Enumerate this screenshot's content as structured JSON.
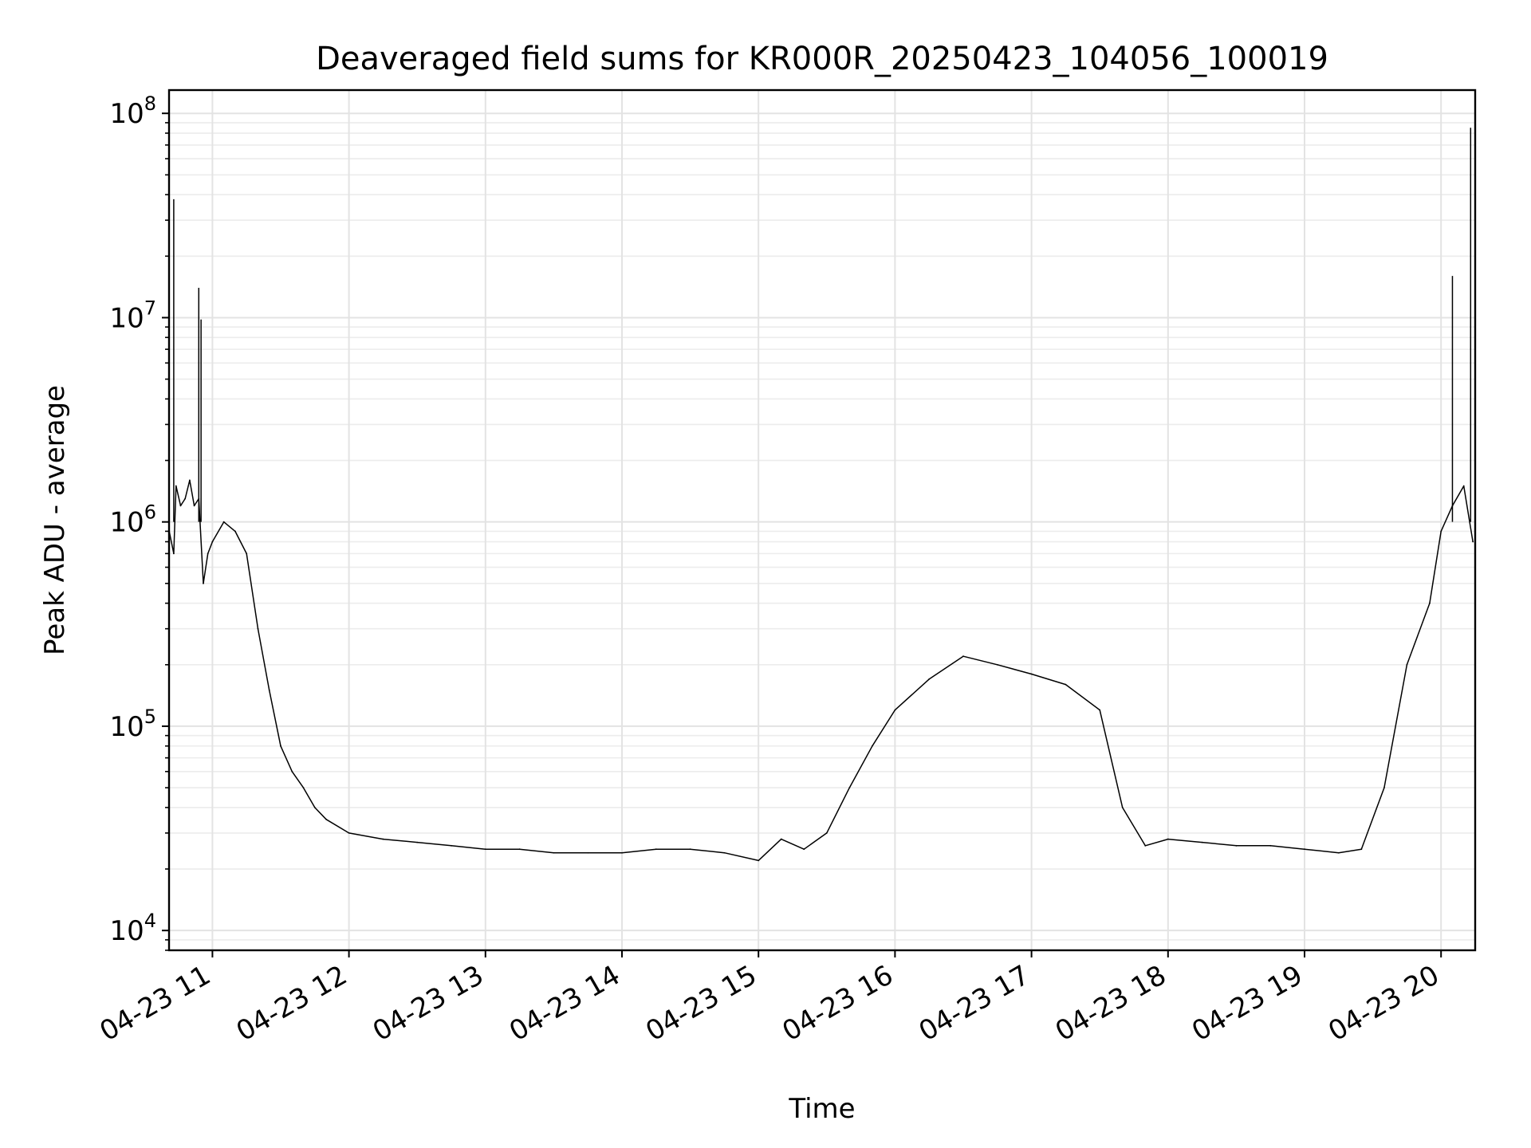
{
  "chart_data": {
    "type": "line",
    "title": "Deaveraged field sums for KR000R_20250423_104056_100019",
    "xlabel": "Time",
    "ylabel": "Peak ADU - average",
    "y_scale": "log",
    "ylim": [
      8000,
      130000000
    ],
    "y_ticks": [
      {
        "value": 10000,
        "base": "10",
        "exp": "4"
      },
      {
        "value": 100000,
        "base": "10",
        "exp": "5"
      },
      {
        "value": 1000000,
        "base": "10",
        "exp": "6"
      },
      {
        "value": 10000000,
        "base": "10",
        "exp": "7"
      },
      {
        "value": 100000000,
        "base": "10",
        "exp": "8"
      }
    ],
    "xlim": [
      "2025-04-23T10:40:56",
      "2025-04-23T20:15:00"
    ],
    "x_ticks": [
      {
        "time": "2025-04-23T11:00",
        "label": "04-23 11"
      },
      {
        "time": "2025-04-23T12:00",
        "label": "04-23 12"
      },
      {
        "time": "2025-04-23T13:00",
        "label": "04-23 13"
      },
      {
        "time": "2025-04-23T14:00",
        "label": "04-23 14"
      },
      {
        "time": "2025-04-23T15:00",
        "label": "04-23 15"
      },
      {
        "time": "2025-04-23T16:00",
        "label": "04-23 16"
      },
      {
        "time": "2025-04-23T17:00",
        "label": "04-23 17"
      },
      {
        "time": "2025-04-23T18:00",
        "label": "04-23 18"
      },
      {
        "time": "2025-04-23T19:00",
        "label": "04-23 19"
      },
      {
        "time": "2025-04-23T20:00",
        "label": "04-23 20"
      }
    ],
    "grid": true,
    "line_color": "#000000",
    "series": [
      {
        "x": [
          "2025-04-23T10:41",
          "2025-04-23T10:43",
          "2025-04-23T10:44",
          "2025-04-23T10:46",
          "2025-04-23T10:48",
          "2025-04-23T10:50",
          "2025-04-23T10:52",
          "2025-04-23T10:54",
          "2025-04-23T10:56",
          "2025-04-23T10:58",
          "2025-04-23T11:00",
          "2025-04-23T11:05",
          "2025-04-23T11:10",
          "2025-04-23T11:15",
          "2025-04-23T11:20",
          "2025-04-23T11:25",
          "2025-04-23T11:30",
          "2025-04-23T11:35",
          "2025-04-23T11:40",
          "2025-04-23T11:45",
          "2025-04-23T11:50",
          "2025-04-23T12:00",
          "2025-04-23T12:15",
          "2025-04-23T12:30",
          "2025-04-23T12:45",
          "2025-04-23T13:00",
          "2025-04-23T13:15",
          "2025-04-23T13:30",
          "2025-04-23T13:45",
          "2025-04-23T14:00",
          "2025-04-23T14:15",
          "2025-04-23T14:30",
          "2025-04-23T14:45",
          "2025-04-23T15:00",
          "2025-04-23T15:10",
          "2025-04-23T15:20",
          "2025-04-23T15:30",
          "2025-04-23T15:40",
          "2025-04-23T15:50",
          "2025-04-23T16:00",
          "2025-04-23T16:15",
          "2025-04-23T16:30",
          "2025-04-23T16:45",
          "2025-04-23T17:00",
          "2025-04-23T17:15",
          "2025-04-23T17:30",
          "2025-04-23T17:40",
          "2025-04-23T17:50",
          "2025-04-23T18:00",
          "2025-04-23T18:15",
          "2025-04-23T18:30",
          "2025-04-23T18:45",
          "2025-04-23T19:00",
          "2025-04-23T19:15",
          "2025-04-23T19:25",
          "2025-04-23T19:35",
          "2025-04-23T19:45",
          "2025-04-23T19:55",
          "2025-04-23T20:00",
          "2025-04-23T20:05",
          "2025-04-23T20:10",
          "2025-04-23T20:14"
        ],
        "y": [
          900000,
          700000,
          1500000,
          1200000,
          1300000,
          1600000,
          1200000,
          1300000,
          500000,
          700000,
          800000,
          1000000,
          900000,
          700000,
          300000,
          150000,
          80000,
          60000,
          50000,
          40000,
          35000,
          30000,
          28000,
          27000,
          26000,
          25000,
          25000,
          24000,
          24000,
          24000,
          25000,
          25000,
          24000,
          22000,
          28000,
          25000,
          30000,
          50000,
          80000,
          120000,
          170000,
          220000,
          200000,
          180000,
          160000,
          120000,
          40000,
          26000,
          28000,
          27000,
          26000,
          26000,
          25000,
          24000,
          25000,
          50000,
          200000,
          400000,
          900000,
          1200000,
          1500000,
          800000
        ]
      }
    ],
    "spikes": [
      {
        "x": "2025-04-23T10:43",
        "y": 38000000
      },
      {
        "x": "2025-04-23T10:54",
        "y": 14000000
      },
      {
        "x": "2025-04-23T10:55",
        "y": 9800000
      },
      {
        "x": "2025-04-23T20:05",
        "y": 16000000
      },
      {
        "x": "2025-04-23T20:13",
        "y": 85000000
      }
    ]
  }
}
